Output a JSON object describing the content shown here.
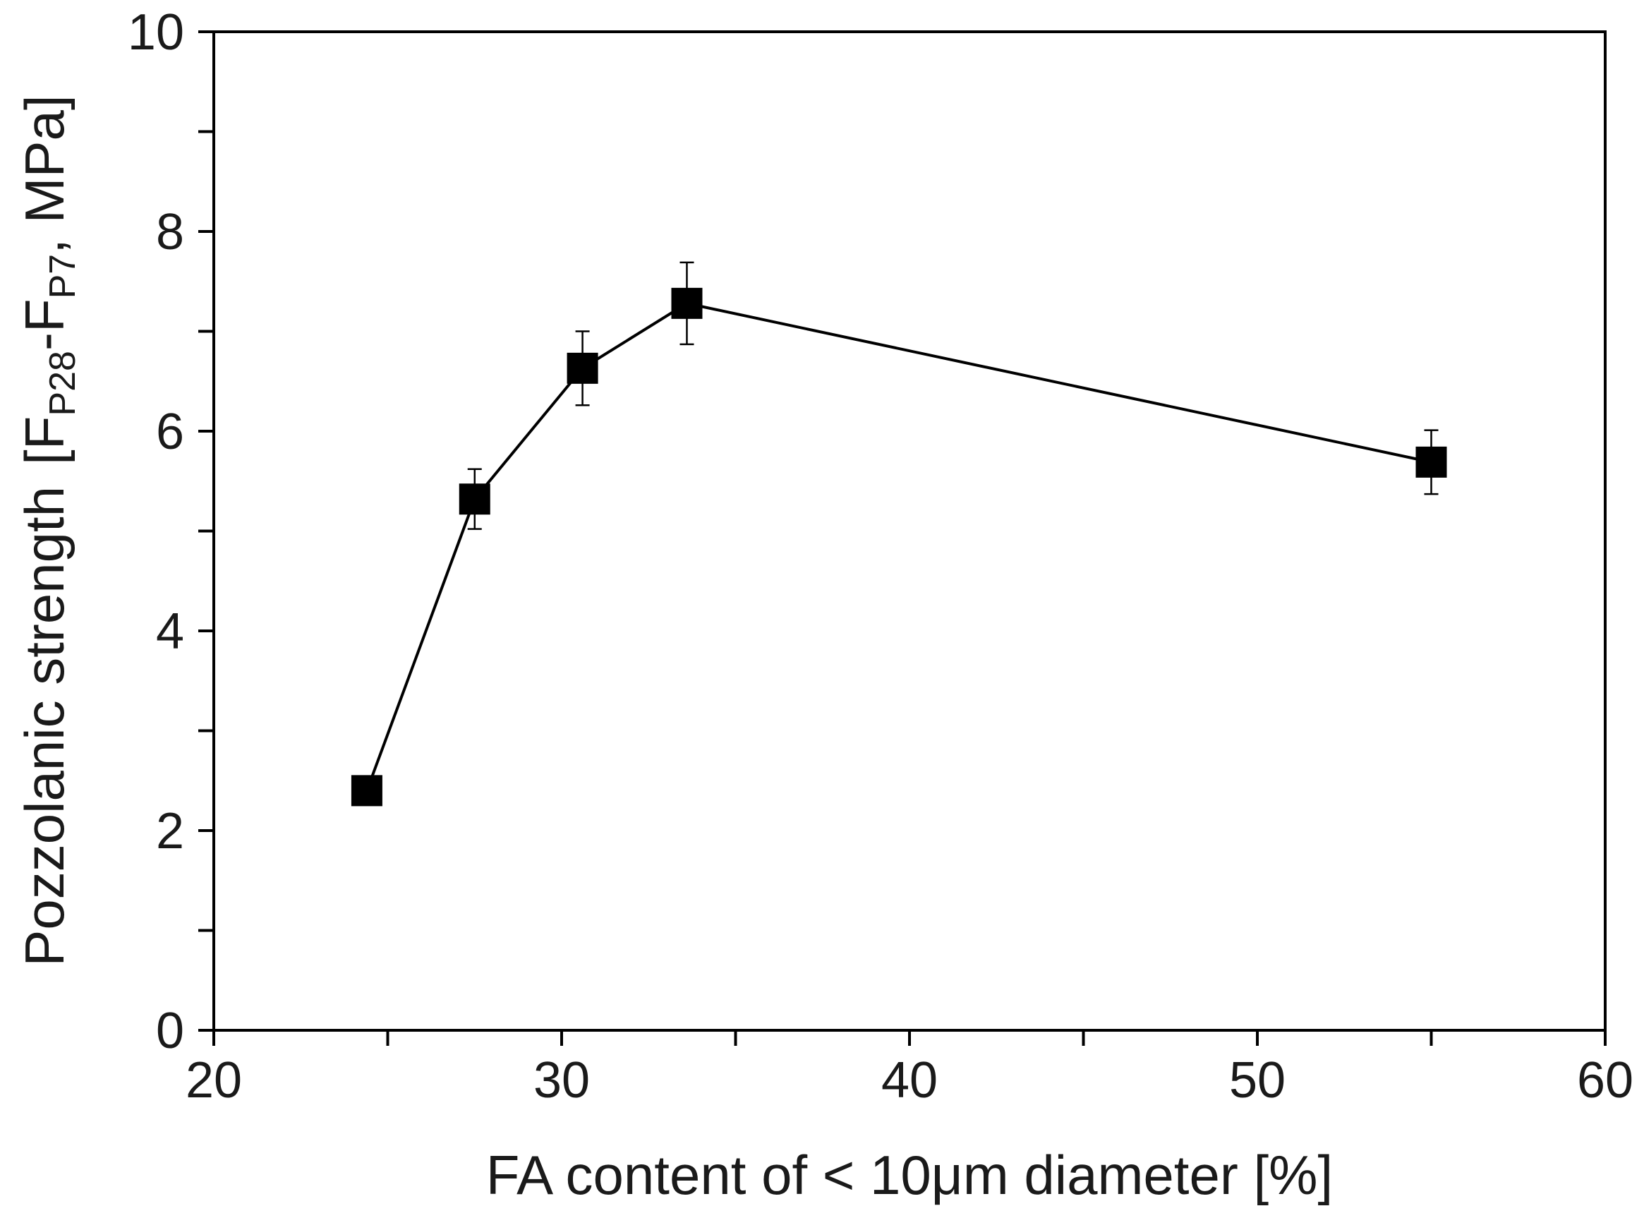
{
  "chart_data": {
    "type": "line",
    "title": "",
    "xlabel": "FA content of < 10μm diameter [%]",
    "ylabel": {
      "main": "Pozzolanic strength",
      "bracket_open": "[F",
      "sub1": "P28",
      "dash": "-F",
      "sub2": "P7",
      "rest": ", MPa]"
    },
    "xlim": [
      20,
      60
    ],
    "ylim": [
      0,
      10
    ],
    "x_major_ticks": [
      20,
      30,
      40,
      50,
      60
    ],
    "x_minor_ticks": [
      25,
      35,
      45,
      55
    ],
    "y_major_ticks": [
      0,
      2,
      4,
      6,
      8,
      10
    ],
    "y_minor_ticks": [
      1,
      3,
      5,
      7,
      9
    ],
    "grid": false,
    "marker": "square",
    "color": "#000000",
    "series": [
      {
        "points": [
          {
            "x": 24.4,
            "y": 2.4,
            "err": null
          },
          {
            "x": 27.5,
            "y": 5.32,
            "err": 0.3
          },
          {
            "x": 30.6,
            "y": 6.63,
            "err": 0.37
          },
          {
            "x": 33.6,
            "y": 7.28,
            "err": 0.41
          },
          {
            "x": 55.0,
            "y": 5.69,
            "err": 0.32
          }
        ]
      }
    ]
  }
}
